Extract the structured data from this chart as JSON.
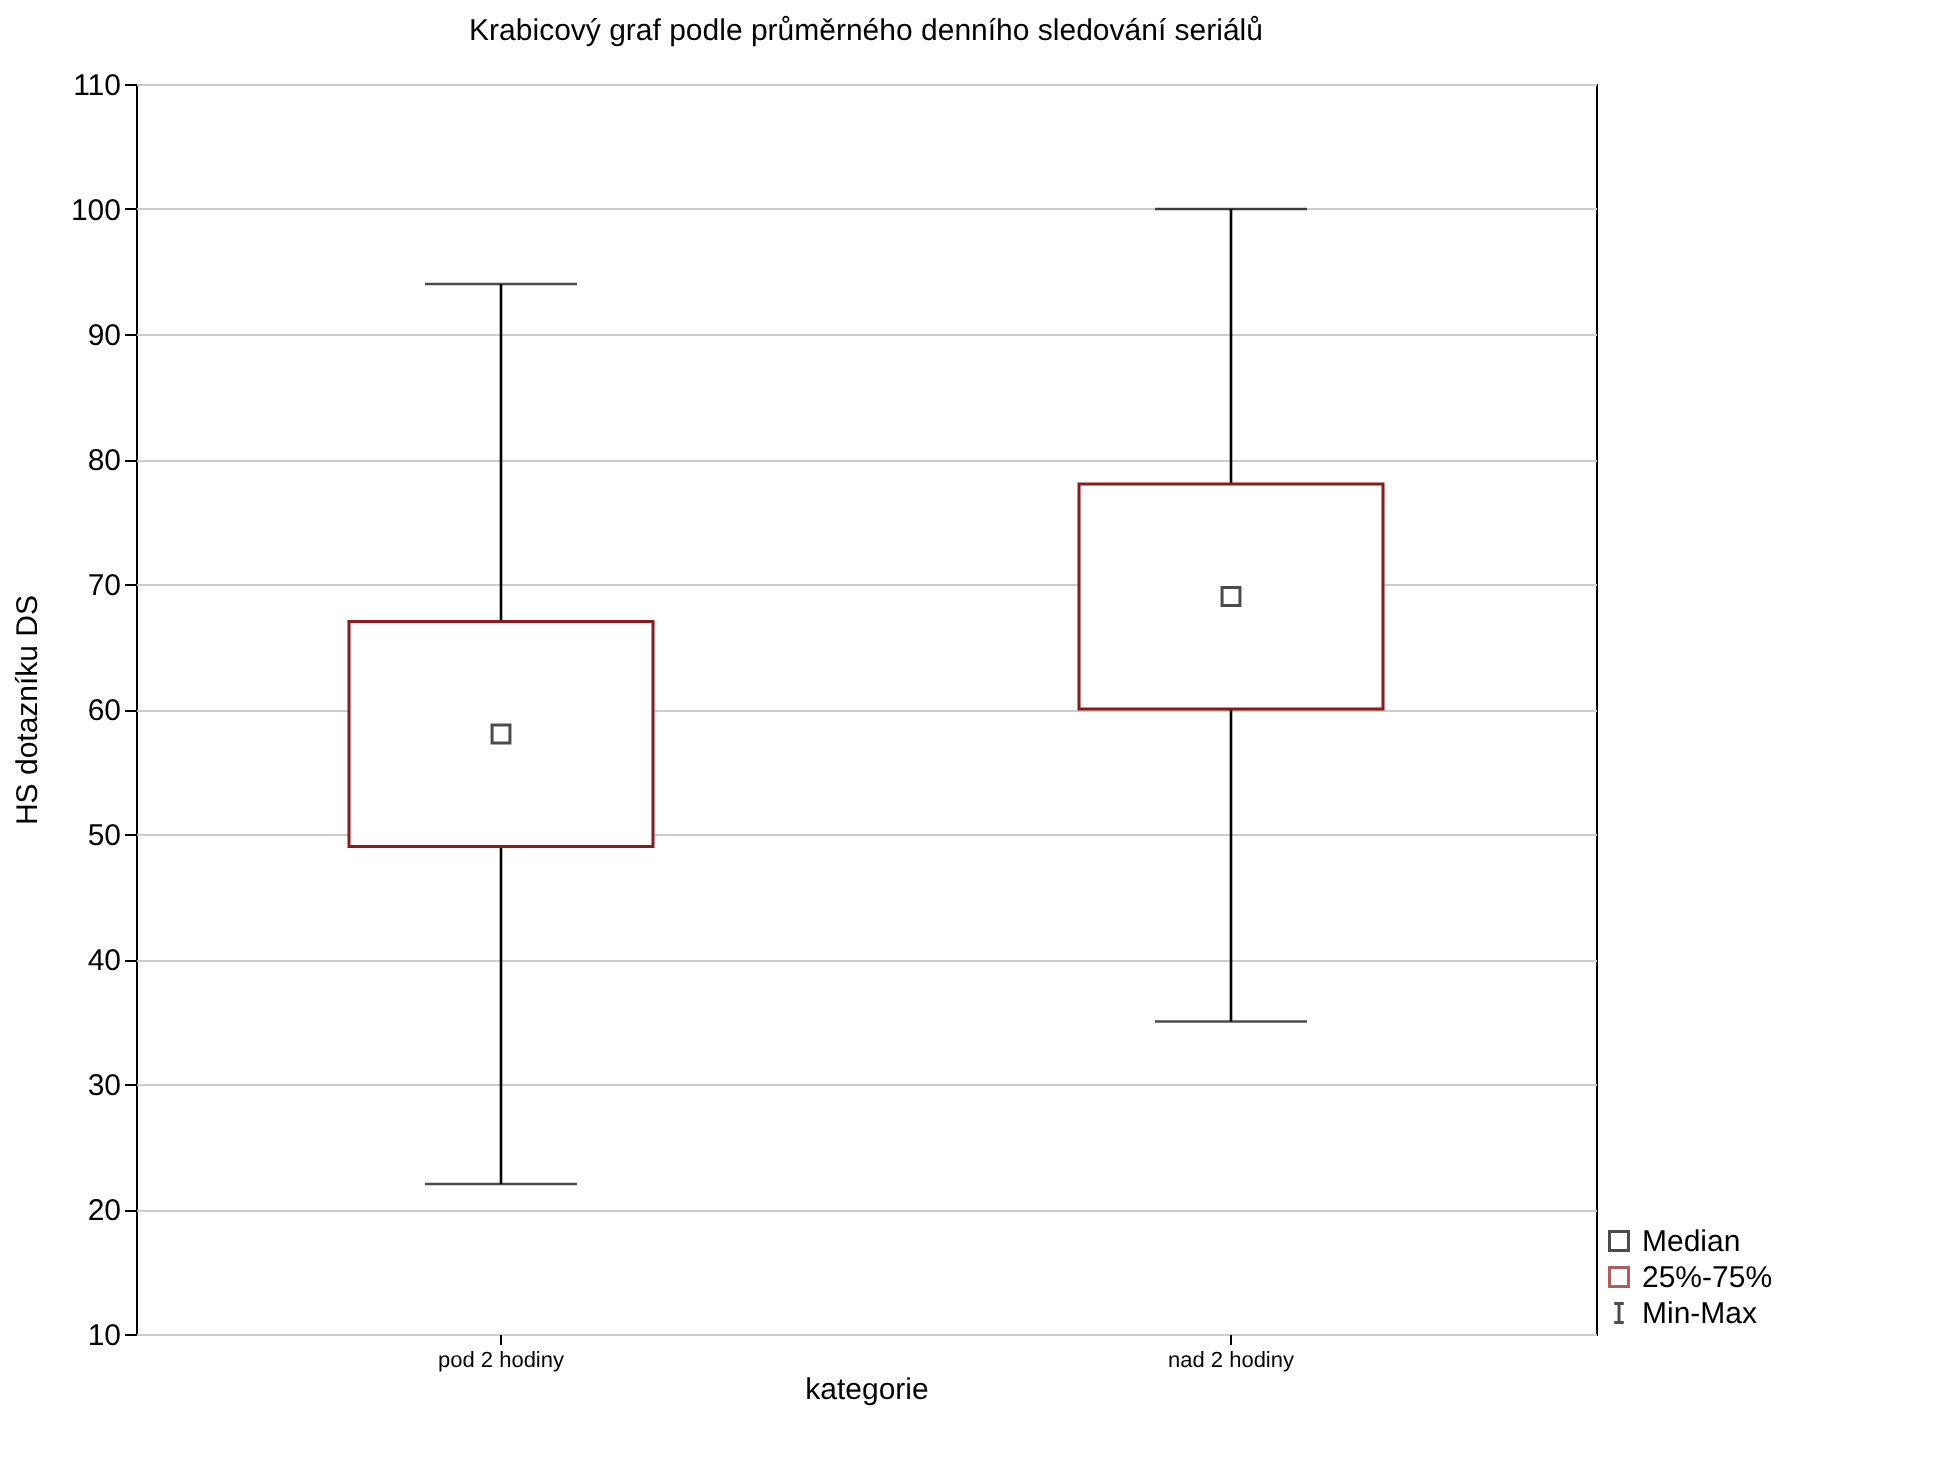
{
  "chart_data": {
    "type": "box",
    "title": "Krabicový graf podle průměrného denního sledování seriálů",
    "xlabel": "kategorie",
    "ylabel": "HS dotazníku DS",
    "categories": [
      "pod 2 hodiny",
      "nad 2 hodiny"
    ],
    "series": [
      {
        "color": "#8b1a1a",
        "boxes": [
          {
            "low": 22,
            "q1": 49,
            "median": 58,
            "q3": 67,
            "high": 94
          },
          {
            "low": 35,
            "q1": 60,
            "median": 69,
            "q3": 78,
            "high": 100
          }
        ]
      }
    ],
    "ylim": [
      10,
      110
    ],
    "yticks": [
      10,
      20,
      30,
      40,
      50,
      60,
      70,
      80,
      90,
      100,
      110
    ],
    "grid": "y",
    "marker": "square",
    "annotations": [
      "Median",
      "25%-75%",
      "Min-Max"
    ]
  }
}
